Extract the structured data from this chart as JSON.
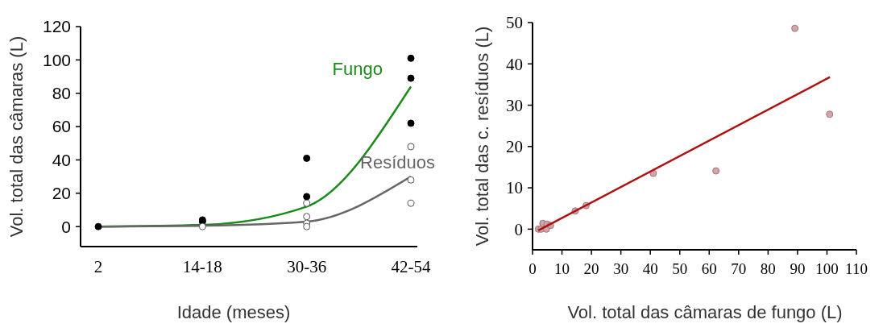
{
  "chart_data": [
    {
      "type": "line",
      "xlabel": "Idade (meses)",
      "ylabel": "Vol. total das câmaras (L)",
      "categories": [
        "2",
        "14-18",
        "30-36",
        "42-54"
      ],
      "ylim": [
        -12,
        120
      ],
      "yticks": [
        0,
        20,
        40,
        60,
        80,
        100,
        120
      ],
      "series": [
        {
          "name": "Fungo",
          "color": "#1a8a1a",
          "values": [
            0,
            1,
            12,
            84
          ]
        },
        {
          "name": "Resíduos",
          "color": "#666666",
          "values": [
            0,
            0.5,
            3,
            30
          ]
        },
        {
          "type": "scatter",
          "marker": "circle",
          "color": "#000000",
          "x": [
            "2",
            "14-18",
            "14-18",
            "30-36",
            "30-36",
            "42-54",
            "42-54",
            "42-54"
          ],
          "values": [
            0,
            4,
            3,
            41,
            18,
            101,
            89,
            62
          ]
        },
        {
          "type": "scatter",
          "marker": "circle",
          "color": "#ffffff",
          "x": [
            "14-18",
            "30-36",
            "30-36",
            "30-36",
            "30-36",
            "42-54",
            "42-54",
            "42-54"
          ],
          "values": [
            0,
            14,
            6,
            2,
            0,
            48,
            28,
            14
          ]
        }
      ]
    },
    {
      "type": "scatter",
      "xlabel": "Vol. total das câmaras de fungo (L)",
      "ylabel": "Vol. total das c. resíduos (L)",
      "xlim": [
        0,
        110
      ],
      "xticks": [
        0,
        10,
        20,
        30,
        40,
        50,
        60,
        70,
        80,
        90,
        100,
        110
      ],
      "ylim": [
        -5,
        50
      ],
      "yticks": [
        0,
        10,
        20,
        30,
        40,
        50
      ],
      "series": [
        {
          "marker": "circle",
          "color": "#d4a5a8",
          "x": [
            2,
            2.9,
            3.5,
            4.9,
            4.7,
            6.1,
            14.5,
            18.2,
            41,
            62.3,
            89.1,
            100.9
          ],
          "values": [
            0,
            0,
            1.4,
            1.2,
            0,
            0.9,
            4.4,
            5.7,
            13.5,
            14.1,
            48.6,
            27.8
          ]
        },
        {
          "type": "line",
          "color": "#b01010",
          "x": [
            2,
            101
          ],
          "values": [
            -0.3,
            36.8
          ]
        }
      ]
    }
  ]
}
